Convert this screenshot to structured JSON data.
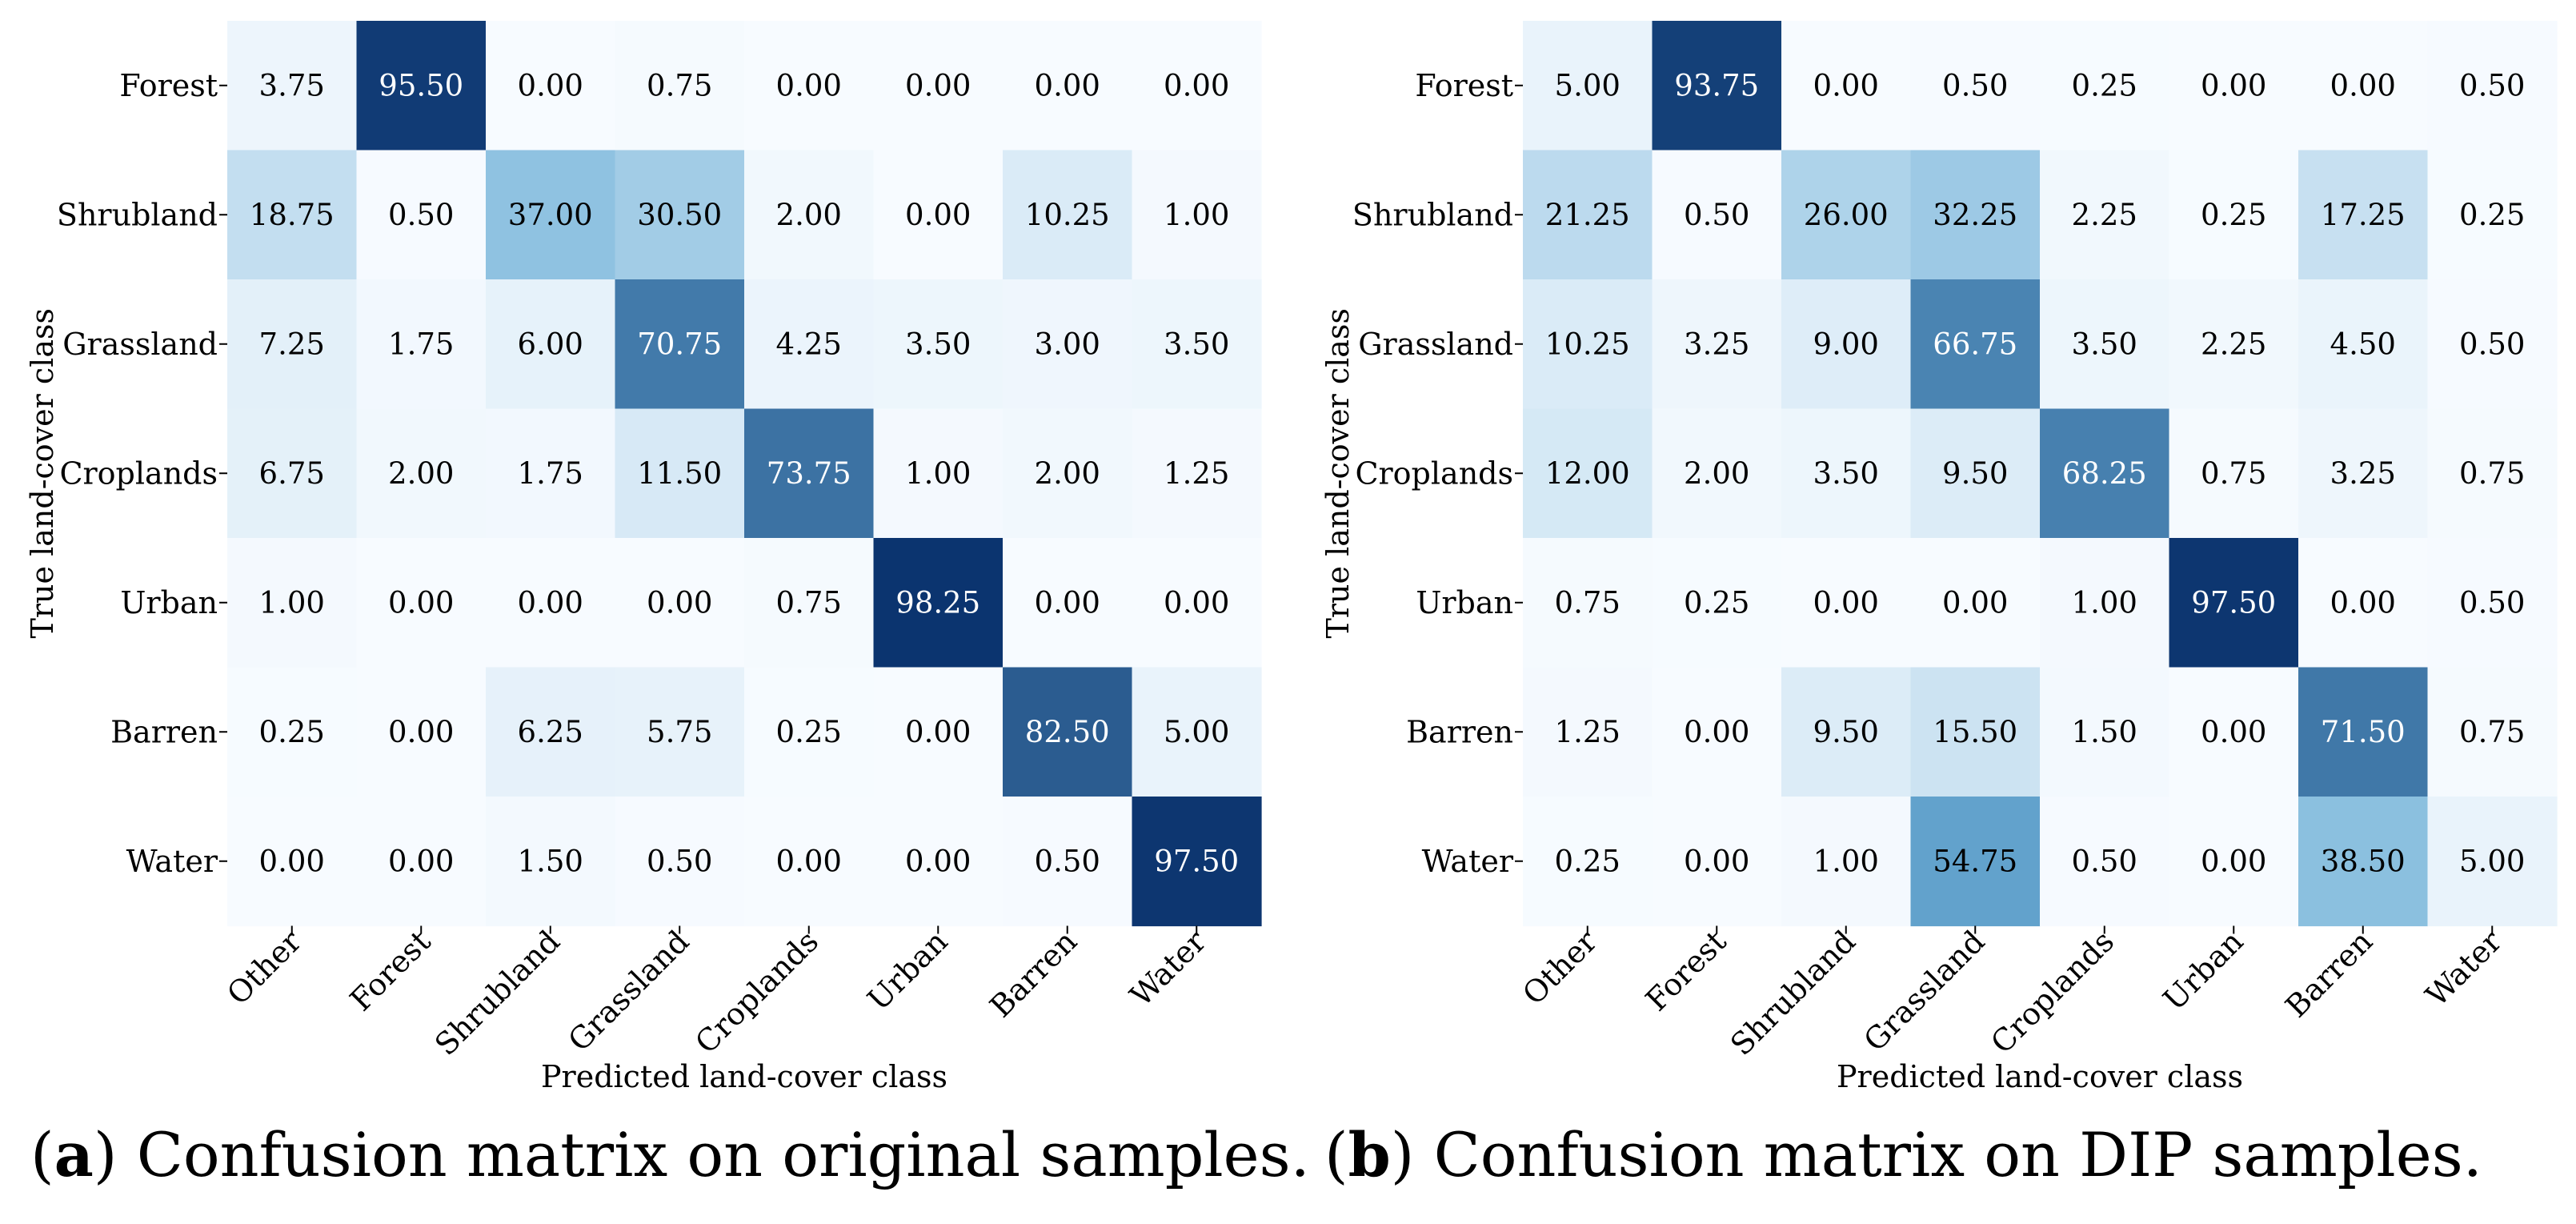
{
  "captions": {
    "a_letter": "a",
    "a_text": "Confusion matrix on original samples.",
    "b_letter": "b",
    "b_text": "Confusion matrix on DIP samples."
  },
  "colors": {
    "low": "#f7fbff",
    "mid": "#6baed6",
    "high": "#08306b"
  },
  "chart_data": [
    {
      "type": "heatmap",
      "xlabel": "Predicted land-cover class",
      "ylabel": "True land-cover class",
      "x": [
        "Other",
        "Forest",
        "Shrubland",
        "Grassland",
        "Croplands",
        "Urban",
        "Barren",
        "Water"
      ],
      "y": [
        "Forest",
        "Shrubland",
        "Grassland",
        "Croplands",
        "Urban",
        "Barren",
        "Water"
      ],
      "values": [
        [
          3.75,
          95.5,
          0.0,
          0.75,
          0.0,
          0.0,
          0.0,
          0.0
        ],
        [
          18.75,
          0.5,
          37.0,
          30.5,
          2.0,
          0.0,
          10.25,
          1.0
        ],
        [
          7.25,
          1.75,
          6.0,
          70.75,
          4.25,
          3.5,
          3.0,
          3.5
        ],
        [
          6.75,
          2.0,
          1.75,
          11.5,
          73.75,
          1.0,
          2.0,
          1.25
        ],
        [
          1.0,
          0.0,
          0.0,
          0.0,
          0.75,
          98.25,
          0.0,
          0.0
        ],
        [
          0.25,
          0.0,
          6.25,
          5.75,
          0.25,
          0.0,
          82.5,
          5.0
        ],
        [
          0.0,
          0.0,
          1.5,
          0.5,
          0.0,
          0.0,
          0.5,
          97.5
        ]
      ],
      "vrange": [
        0,
        100
      ]
    },
    {
      "type": "heatmap",
      "xlabel": "Predicted land-cover class",
      "ylabel": "True land-cover class",
      "x": [
        "Other",
        "Forest",
        "Shrubland",
        "Grassland",
        "Croplands",
        "Urban",
        "Barren",
        "Water"
      ],
      "y": [
        "Forest",
        "Shrubland",
        "Grassland",
        "Croplands",
        "Urban",
        "Barren",
        "Water"
      ],
      "values": [
        [
          5.0,
          93.75,
          0.0,
          0.5,
          0.25,
          0.0,
          0.0,
          0.5
        ],
        [
          21.25,
          0.5,
          26.0,
          32.25,
          2.25,
          0.25,
          17.25,
          0.25
        ],
        [
          10.25,
          3.25,
          9.0,
          66.75,
          3.5,
          2.25,
          4.5,
          0.5
        ],
        [
          12.0,
          2.0,
          3.5,
          9.5,
          68.25,
          0.75,
          3.25,
          0.75
        ],
        [
          0.75,
          0.25,
          0.0,
          0.0,
          1.0,
          97.5,
          0.0,
          0.5
        ],
        [
          1.25,
          0.0,
          9.5,
          15.5,
          1.5,
          0.0,
          71.5,
          0.75
        ],
        [
          0.25,
          0.0,
          1.0,
          54.75,
          0.5,
          0.0,
          38.5,
          5.0
        ]
      ],
      "vrange": [
        0,
        100
      ]
    }
  ]
}
